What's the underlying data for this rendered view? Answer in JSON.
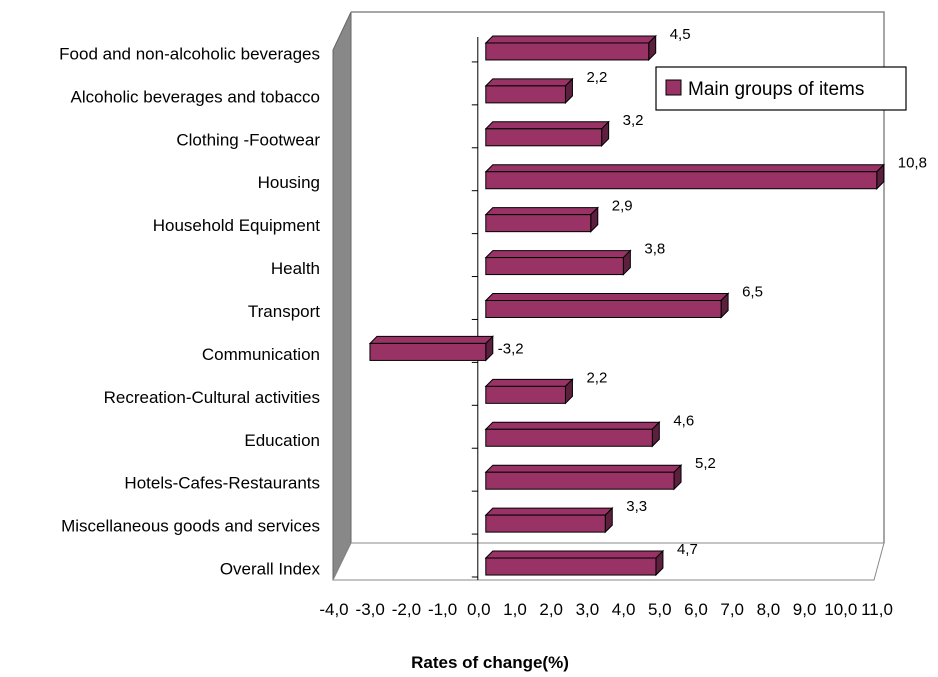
{
  "chart_data": {
    "type": "bar",
    "orientation": "horizontal",
    "style": "3d",
    "categories": [
      "Food and non-alcoholic beverages",
      "Alcoholic beverages and tobacco",
      "Clothing -Footwear",
      "Housing",
      "Household Equipment",
      "Health",
      "Transport",
      "Communication",
      "Recreation-Cultural activities",
      "Education",
      "Hotels-Cafes-Restaurants",
      "Miscellaneous goods and services",
      "Overall Index"
    ],
    "series": [
      {
        "name": "Main groups of items",
        "color": "#993366",
        "values": [
          4.5,
          2.2,
          3.2,
          10.8,
          2.9,
          3.8,
          6.5,
          -3.2,
          2.2,
          4.6,
          5.2,
          3.3,
          4.7
        ],
        "value_labels": [
          "4,5",
          "2,2",
          "3,2",
          "10,8",
          "2,9",
          "3,8",
          "6,5",
          "-3,2",
          "2,2",
          "4,6",
          "5,2",
          "3,3",
          "4,7"
        ]
      }
    ],
    "x_ticks": [
      -4.0,
      -3.0,
      -2.0,
      -1.0,
      0.0,
      1.0,
      2.0,
      3.0,
      4.0,
      5.0,
      6.0,
      7.0,
      8.0,
      9.0,
      10.0,
      11.0
    ],
    "x_tick_labels": [
      "-4,0",
      "-3,0",
      "-2,0",
      "-1,0",
      "0,0",
      "1,0",
      "2,0",
      "3,0",
      "4,0",
      "5,0",
      "6,0",
      "7,0",
      "8,0",
      "9,0",
      "10,0",
      "11,0"
    ],
    "xlim": [
      -4,
      11
    ],
    "xlabel": "Rates of change(%)",
    "ylabel": "",
    "title": "",
    "grid": false,
    "legend": "top-right",
    "wall_color": "#888888"
  }
}
